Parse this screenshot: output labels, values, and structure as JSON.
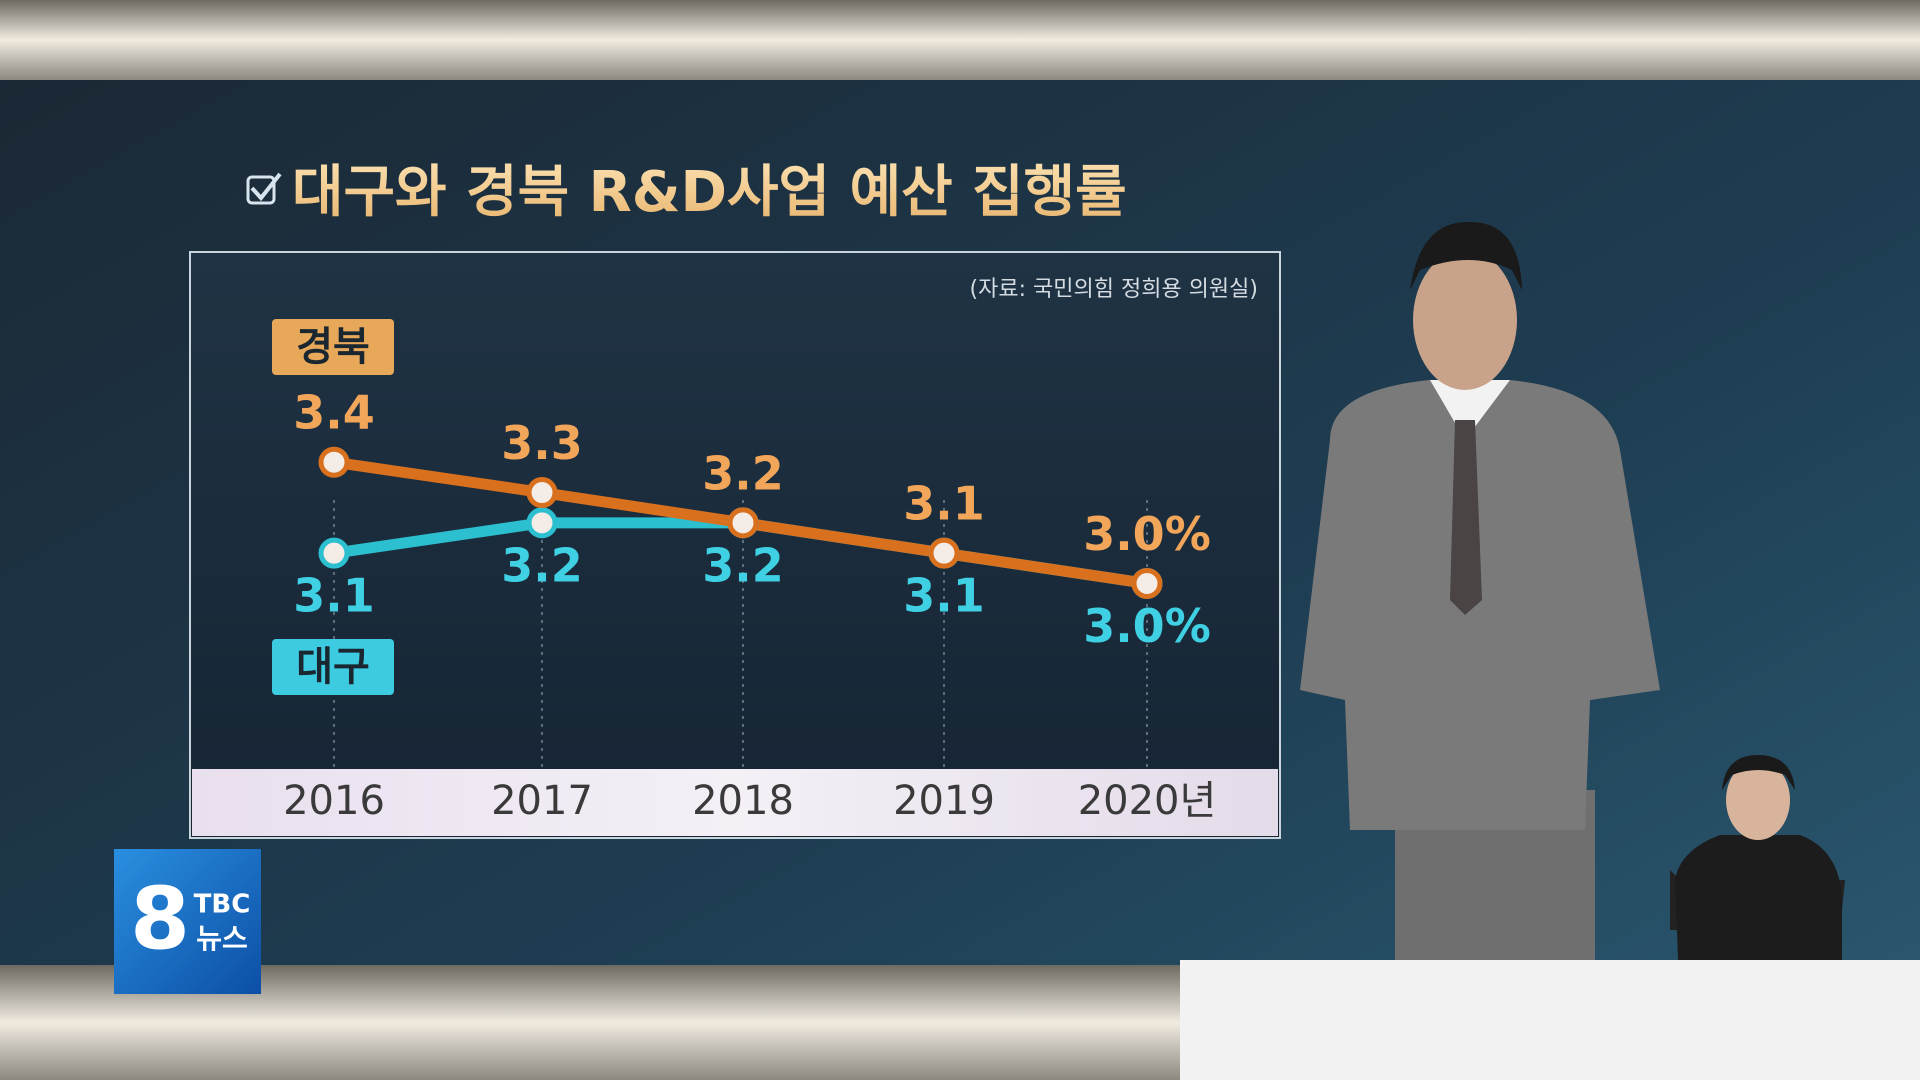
{
  "chart_data": {
    "type": "line",
    "title": "대구와 경북 R&D사업 예산 집행률",
    "source": "(자료: 국민의힘 정희용 의원실)",
    "categories": [
      "2016",
      "2017",
      "2018",
      "2019",
      "2020년"
    ],
    "series": [
      {
        "name": "경북",
        "color": "#d9701e",
        "label_color": "#f2a65a",
        "values": [
          3.4,
          3.3,
          3.2,
          3.1,
          3.0
        ],
        "value_labels": [
          "3.4",
          "3.3",
          "3.2",
          "3.1",
          "3.0%"
        ]
      },
      {
        "name": "대구",
        "color": "#2bbfd0",
        "label_color": "#3fd0e4",
        "values": [
          3.1,
          3.2,
          3.2,
          3.1,
          3.0
        ],
        "value_labels": [
          "3.1",
          "3.2",
          "3.2",
          "3.1",
          "3.0%"
        ]
      }
    ],
    "ylim": [
      2.5,
      3.8
    ],
    "grid": false
  },
  "logo": {
    "number": "8",
    "brand": "TBC",
    "name": "뉴스"
  }
}
